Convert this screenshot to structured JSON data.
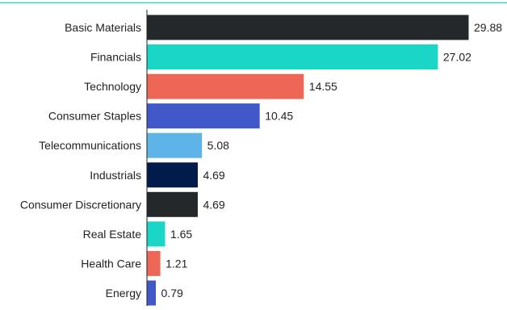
{
  "chart_data": {
    "type": "bar",
    "orientation": "horizontal",
    "title": "",
    "xlabel": "",
    "ylabel": "",
    "categories": [
      "Basic Materials",
      "Financials",
      "Technology",
      "Consumer Staples",
      "Telecommunications",
      "Industrials",
      "Consumer Discretionary",
      "Real Estate",
      "Health Care",
      "Energy"
    ],
    "values": [
      29.88,
      27.02,
      14.55,
      10.45,
      5.08,
      4.69,
      4.69,
      1.65,
      1.21,
      0.79
    ],
    "value_labels": [
      "29.88",
      "27.02",
      "14.55",
      "10.45",
      "5.08",
      "4.69",
      "4.69",
      "1.65",
      "1.21",
      "0.79"
    ],
    "xlim": [
      0,
      29.88
    ],
    "grid": false,
    "legend": "none",
    "colors": [
      "#25282b",
      "#1ad6c6",
      "#ee6655",
      "#4158c8",
      "#5eb4e6",
      "#011c4b",
      "#25282b",
      "#1ad6c6",
      "#ee6655",
      "#4158c8"
    ],
    "top_rule_color": "#1ad6c6",
    "axis_color": "#222222"
  }
}
